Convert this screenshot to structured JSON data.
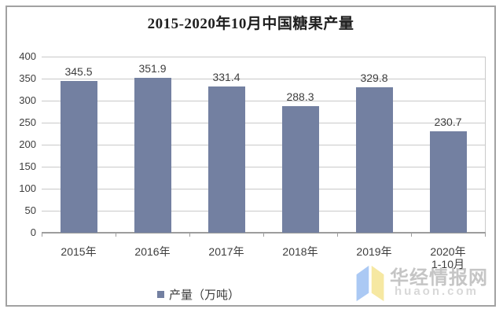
{
  "chart_data": {
    "type": "bar",
    "title": "2015-2020年10月中国糖果产量",
    "categories": [
      "2015年",
      "2016年",
      "2017年",
      "2018年",
      "2019年",
      "2020年"
    ],
    "category_sublabels": [
      "",
      "",
      "",
      "",
      "",
      "1-10月"
    ],
    "values": [
      345.5,
      351.9,
      331.4,
      288.3,
      329.8,
      230.7
    ],
    "series_name": "产量（万吨）",
    "xlabel": "",
    "ylabel": "",
    "ylim": [
      0,
      400
    ],
    "ytick_step": 50,
    "grid": true,
    "legend_position": "bottom",
    "bar_color": "#7380a1"
  },
  "legend": {
    "marker_color": "#7380a1",
    "label": "产量（万吨）"
  },
  "watermark": {
    "site_name": "华经情报网",
    "site_url": "huaon.com",
    "logo_blue": "#abc9f4",
    "logo_yellow": "#f6e8a2"
  },
  "colors": {
    "bar": "#7380a1",
    "gridline": "#c9c9c9",
    "axis": "#9d9d9d",
    "label_text": "#3d3d3d",
    "title_text": "#1f1f1f",
    "frame_border": "#a2a2a2",
    "watermark_text": "#c5c5c5",
    "watermark_url": "#d8d8d8"
  }
}
